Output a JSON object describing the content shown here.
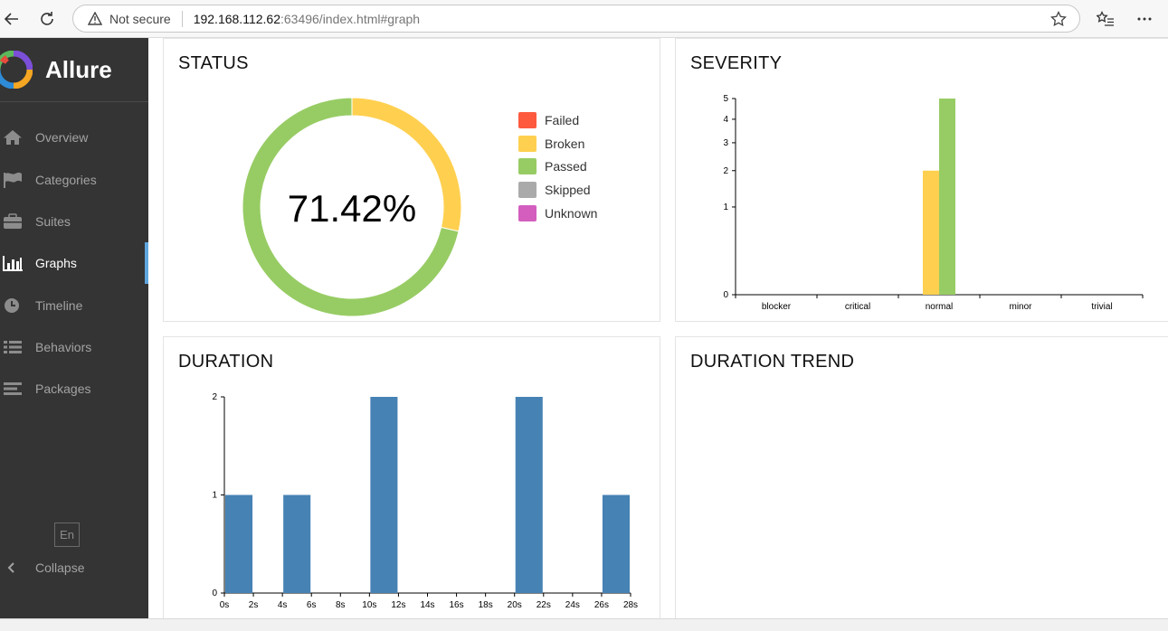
{
  "browser": {
    "security_label": "Not secure",
    "url_host": "192.168.112.62",
    "url_rest": ":63496/index.html#graph"
  },
  "sidebar": {
    "brand": "Allure",
    "items": [
      {
        "label": "Overview",
        "icon": "home-icon"
      },
      {
        "label": "Categories",
        "icon": "flag-icon"
      },
      {
        "label": "Suites",
        "icon": "briefcase-icon"
      },
      {
        "label": "Graphs",
        "icon": "bar-chart-icon",
        "active": true
      },
      {
        "label": "Timeline",
        "icon": "clock-icon"
      },
      {
        "label": "Behaviors",
        "icon": "list-icon"
      },
      {
        "label": "Packages",
        "icon": "align-left-icon"
      }
    ],
    "language": "En",
    "collapse_label": "Collapse"
  },
  "colors": {
    "failed": "#fd5a3e",
    "broken": "#ffd050",
    "passed": "#97cc64",
    "skipped": "#aaaaaa",
    "unknown": "#d35ebe",
    "bar": "#4682b4"
  },
  "status": {
    "title": "STATUS",
    "center_label": "71.42%",
    "legend": [
      "Failed",
      "Broken",
      "Passed",
      "Skipped",
      "Unknown"
    ]
  },
  "severity": {
    "title": "SEVERITY"
  },
  "duration": {
    "title": "DURATION"
  },
  "duration_trend": {
    "title": "DURATION TREND"
  },
  "chart_data": [
    {
      "type": "pie",
      "title": "STATUS",
      "categories": [
        "Failed",
        "Broken",
        "Passed",
        "Skipped",
        "Unknown"
      ],
      "values": [
        0,
        2,
        5,
        0,
        0
      ]
    },
    {
      "type": "bar",
      "title": "SEVERITY",
      "categories": [
        "blocker",
        "critical",
        "normal",
        "minor",
        "trivial"
      ],
      "series": [
        {
          "name": "Broken",
          "values": [
            0,
            0,
            2,
            0,
            0
          ]
        },
        {
          "name": "Passed",
          "values": [
            0,
            0,
            5,
            0,
            0
          ]
        }
      ],
      "y_ticks": [
        0,
        1,
        2,
        3,
        4,
        5
      ],
      "ylim": [
        0,
        5
      ],
      "scale": "sqrt"
    },
    {
      "type": "bar",
      "title": "DURATION",
      "x_ticks": [
        "0s",
        "2s",
        "4s",
        "6s",
        "8s",
        "10s",
        "12s",
        "14s",
        "16s",
        "18s",
        "20s",
        "22s",
        "24s",
        "26s",
        "28s"
      ],
      "bins": [
        {
          "from": 0,
          "to": 2,
          "value": 1
        },
        {
          "from": 4,
          "to": 6,
          "value": 1
        },
        {
          "from": 10,
          "to": 12,
          "value": 2
        },
        {
          "from": 20,
          "to": 22,
          "value": 2
        },
        {
          "from": 26,
          "to": 28,
          "value": 1
        }
      ],
      "y_ticks": [
        0,
        1,
        2
      ],
      "ylim": [
        0,
        2
      ],
      "xlim": [
        0,
        28
      ]
    }
  ]
}
